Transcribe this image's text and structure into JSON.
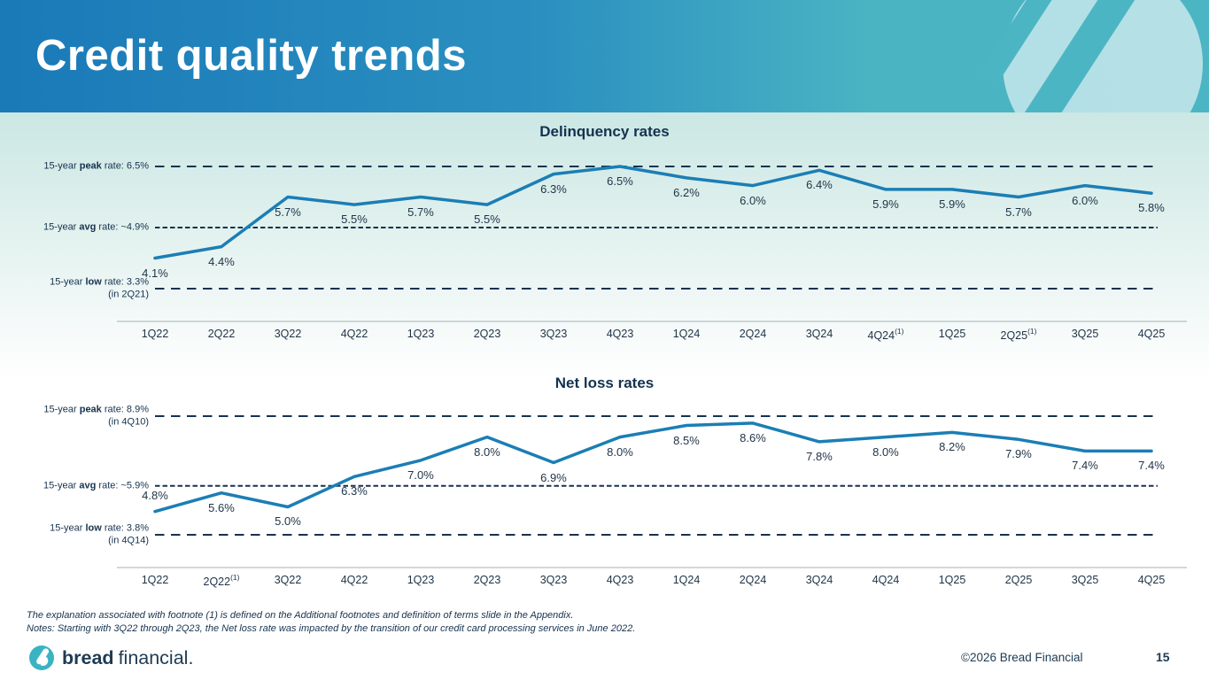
{
  "header": {
    "title": "Credit quality trends"
  },
  "chart_data": [
    {
      "type": "line",
      "title": "Delinquency rates",
      "categories": [
        "1Q22",
        "2Q22",
        "3Q22",
        "4Q22",
        "1Q23",
        "2Q23",
        "3Q23",
        "4Q23",
        "1Q24",
        "2Q24",
        "3Q24",
        "4Q24",
        "1Q25",
        "2Q25",
        "3Q25",
        "4Q25"
      ],
      "category_footnotes": {
        "4Q24": "(1)",
        "2Q25": "(1)"
      },
      "values": [
        4.1,
        4.4,
        5.7,
        5.5,
        5.7,
        5.5,
        6.3,
        6.5,
        6.2,
        6.0,
        6.4,
        5.9,
        5.9,
        5.7,
        6.0,
        5.8
      ],
      "value_labels": [
        "4.1%",
        "4.4%",
        "5.7%",
        "5.5%",
        "5.7%",
        "5.5%",
        "6.3%",
        "6.5%",
        "6.2%",
        "6.0%",
        "6.4%",
        "5.9%",
        "5.9%",
        "5.7%",
        "6.0%",
        "5.8%"
      ],
      "labels_above_indices": [],
      "reference_lines": [
        {
          "prefix": "15-year ",
          "bold": "peak",
          "suffix": " rate: 6.5%",
          "note": "",
          "value": 6.5,
          "dash": "long"
        },
        {
          "prefix": "15-year ",
          "bold": "avg",
          "suffix": " rate: ~4.9%",
          "note": "",
          "value": 4.9,
          "dash": "short"
        },
        {
          "prefix": "15-year ",
          "bold": "low",
          "suffix": " rate: 3.3%",
          "note": "(in 2Q21)",
          "value": 3.3,
          "dash": "long"
        }
      ],
      "ylim": [
        3.3,
        6.5
      ],
      "xlabel": "",
      "ylabel": "",
      "grid": false,
      "legend": "none"
    },
    {
      "type": "line",
      "title": "Net loss rates",
      "categories": [
        "1Q22",
        "2Q22",
        "3Q22",
        "4Q22",
        "1Q23",
        "2Q23",
        "3Q23",
        "4Q23",
        "1Q24",
        "2Q24",
        "3Q24",
        "4Q24",
        "1Q25",
        "2Q25",
        "3Q25",
        "4Q25"
      ],
      "category_footnotes": {
        "2Q22": "(1)"
      },
      "values": [
        4.8,
        5.6,
        5.0,
        6.3,
        7.0,
        8.0,
        6.9,
        8.0,
        8.5,
        8.6,
        7.8,
        8.0,
        8.2,
        7.9,
        7.4,
        7.4
      ],
      "value_labels": [
        "4.8%",
        "5.6%",
        "5.0%",
        "6.3%",
        "7.0%",
        "8.0%",
        "6.9%",
        "8.0%",
        "8.5%",
        "8.6%",
        "7.8%",
        "8.0%",
        "8.2%",
        "7.9%",
        "7.4%",
        "7.4%"
      ],
      "labels_above_indices": [
        0
      ],
      "reference_lines": [
        {
          "prefix": "15-year ",
          "bold": "peak",
          "suffix": " rate: 8.9%",
          "note": "(in 4Q10)",
          "value": 8.9,
          "dash": "long"
        },
        {
          "prefix": "15-year ",
          "bold": "avg",
          "suffix": " rate: ~5.9%",
          "note": "",
          "value": 5.9,
          "dash": "short"
        },
        {
          "prefix": "15-year ",
          "bold": "low",
          "suffix": " rate: 3.8%",
          "note": "(in 4Q14)",
          "value": 3.8,
          "dash": "long"
        }
      ],
      "ylim": [
        3.8,
        8.9
      ],
      "xlabel": "",
      "ylabel": "",
      "grid": false,
      "legend": "none"
    }
  ],
  "footnotes": {
    "line1": "The explanation associated with footnote (1) is defined on the Additional footnotes and definition of terms slide in the Appendix.",
    "line2": "Notes: Starting with 3Q22 through 2Q23, the Net loss rate was impacted by the transition of our credit card processing services in June 2022."
  },
  "footer": {
    "brand_bold": "bread",
    "brand_regular": "financial",
    "brand_period": ".",
    "copyright": "©2026 Bread Financial",
    "page_number": "15"
  },
  "colors": {
    "series_line": "#1b7eb5",
    "dash_line": "#16324f",
    "axis_line": "#a9aeb4",
    "header_blue": "#1a79b8",
    "header_teal": "#4cb5c3",
    "brand_teal": "#3ab3c3",
    "text_navy": "#16324f"
  }
}
